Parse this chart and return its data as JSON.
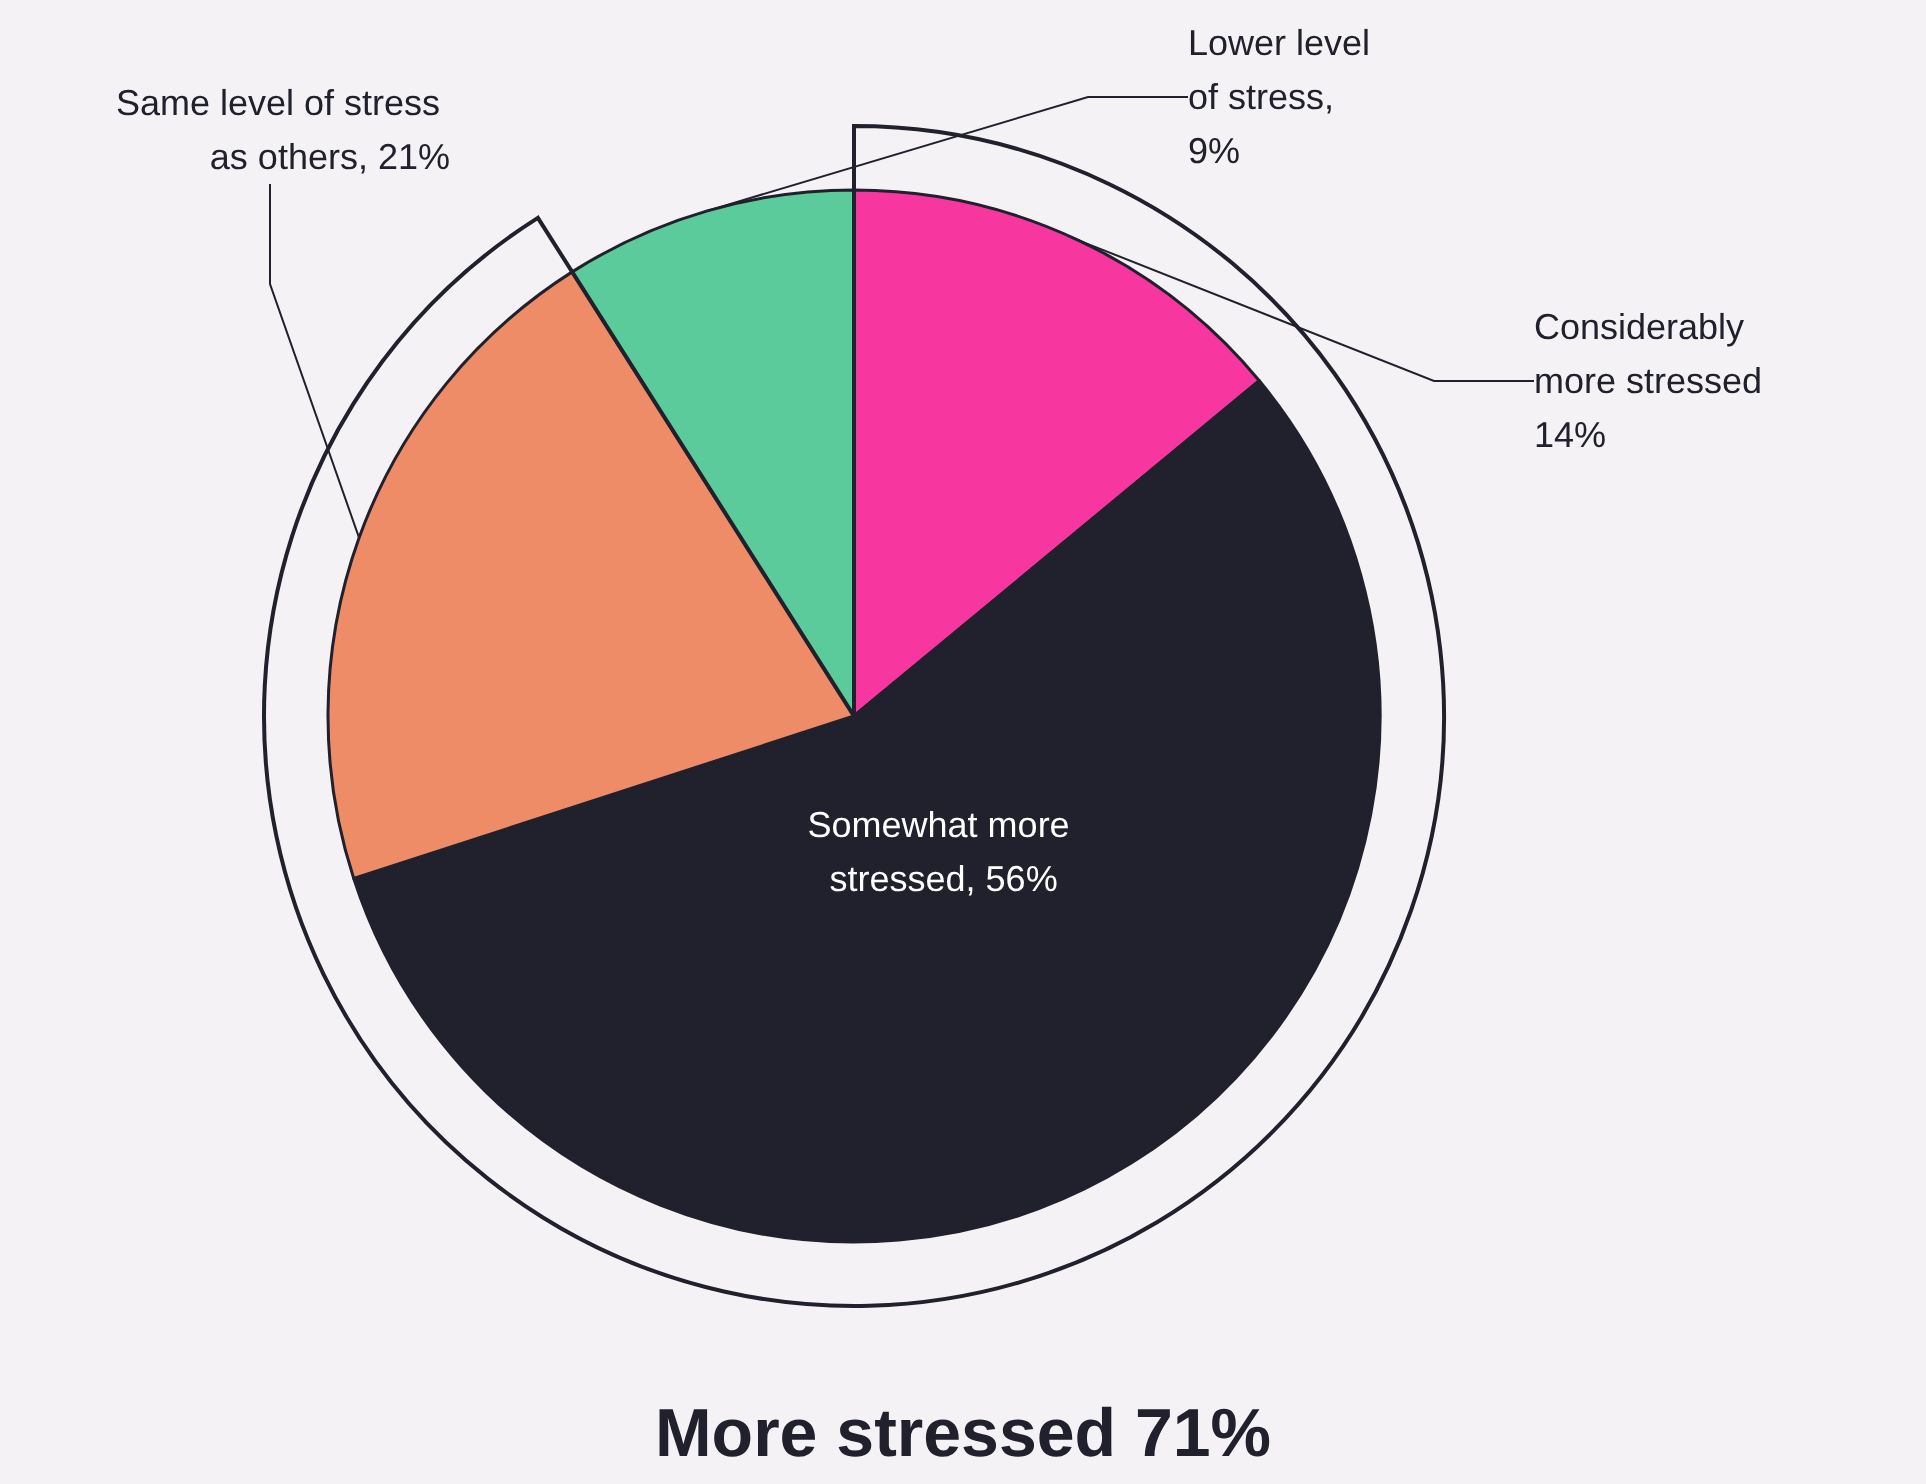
{
  "chart_data": {
    "type": "pie",
    "categories": [
      "Considerably more stressed 14%",
      "Somewhat more stressed, 56%",
      "Same level of stress as others, 21%",
      "Lower level of stress, 9%"
    ],
    "values": [
      14,
      56,
      21,
      9
    ],
    "colors": [
      "#f7379f",
      "#20212d",
      "#ee8c68",
      "#5bcb9c"
    ],
    "annotations": [
      "More stressed 71%"
    ],
    "legend": false
  }
}
